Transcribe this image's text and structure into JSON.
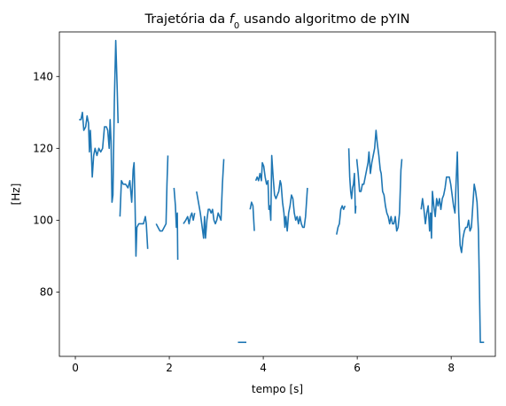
{
  "chart_data": {
    "type": "line",
    "title": "Trajetória da f0 usando algoritmo de pYIN",
    "title_parts": {
      "before": "Trajetória da ",
      "symbol": "f",
      "subscript": "0",
      "after": " usando algoritmo de pYIN"
    },
    "xlabel": "tempo [s]",
    "ylabel": "[Hz]",
    "xlim": [
      -0.34,
      8.94
    ],
    "ylim": [
      62.1,
      152.4
    ],
    "x_ticks": [
      0,
      2,
      4,
      6,
      8
    ],
    "x_tick_labels": [
      "0",
      "2",
      "4",
      "6",
      "8"
    ],
    "y_ticks": [
      80,
      100,
      120,
      140
    ],
    "y_tick_labels": [
      "80",
      "100",
      "120",
      "140"
    ],
    "grid": false,
    "line_color": "#1f77b4",
    "series": [
      {
        "segments": [
          [
            [
              0.08,
              128
            ],
            [
              0.12,
              128
            ],
            [
              0.15,
              130
            ],
            [
              0.18,
              125
            ],
            [
              0.22,
              126
            ],
            [
              0.25,
              129
            ],
            [
              0.28,
              127
            ],
            [
              0.3,
              119
            ],
            [
              0.32,
              125
            ],
            [
              0.34,
              119
            ],
            [
              0.36,
              112
            ],
            [
              0.39,
              118
            ],
            [
              0.42,
              120
            ],
            [
              0.46,
              118
            ],
            [
              0.5,
              120
            ],
            [
              0.54,
              119
            ],
            [
              0.58,
              120
            ],
            [
              0.62,
              126
            ],
            [
              0.66,
              126
            ],
            [
              0.69,
              125
            ],
            [
              0.72,
              120
            ],
            [
              0.74,
              128
            ],
            [
              0.76,
              122
            ],
            [
              0.78,
              105
            ],
            [
              0.8,
              107
            ],
            [
              0.83,
              133
            ],
            [
              0.86,
              150
            ],
            [
              0.89,
              137
            ],
            [
              0.91,
              127
            ]
          ],
          [
            [
              0.95,
              101
            ],
            [
              0.98,
              111
            ],
            [
              1.02,
              110
            ],
            [
              1.07,
              110
            ],
            [
              1.12,
              109
            ],
            [
              1.16,
              111
            ],
            [
              1.2,
              105
            ],
            [
              1.23,
              114
            ],
            [
              1.25,
              116
            ],
            [
              1.27,
              105
            ],
            [
              1.29,
              90
            ],
            [
              1.31,
              98
            ],
            [
              1.35,
              99
            ],
            [
              1.4,
              99
            ],
            [
              1.45,
              99
            ],
            [
              1.49,
              101
            ],
            [
              1.51,
              99
            ],
            [
              1.54,
              92
            ]
          ],
          [
            [
              1.72,
              99
            ],
            [
              1.76,
              98
            ],
            [
              1.8,
              97
            ],
            [
              1.85,
              97
            ],
            [
              1.89,
              98
            ],
            [
              1.93,
              99
            ],
            [
              1.95,
              110
            ],
            [
              1.97,
              118
            ]
          ],
          [
            [
              2.1,
              109
            ],
            [
              2.13,
              104
            ],
            [
              2.15,
              98
            ],
            [
              2.17,
              102
            ],
            [
              2.18,
              89
            ]
          ],
          [
            [
              2.3,
              99
            ],
            [
              2.35,
              100
            ],
            [
              2.39,
              101
            ],
            [
              2.42,
              99
            ],
            [
              2.45,
              101
            ],
            [
              2.48,
              102
            ],
            [
              2.51,
              100
            ],
            [
              2.54,
              102
            ]
          ],
          [
            [
              2.58,
              108
            ],
            [
              2.62,
              105
            ],
            [
              2.66,
              102
            ],
            [
              2.7,
              98
            ],
            [
              2.73,
              95
            ],
            [
              2.75,
              101
            ],
            [
              2.77,
              95
            ],
            [
              2.8,
              100
            ],
            [
              2.83,
              103
            ],
            [
              2.86,
              103
            ],
            [
              2.89,
              102
            ],
            [
              2.92,
              103
            ],
            [
              2.95,
              100
            ],
            [
              2.98,
              99
            ],
            [
              3.01,
              100
            ],
            [
              3.04,
              102
            ],
            [
              3.07,
              101
            ],
            [
              3.1,
              100
            ],
            [
              3.13,
              110
            ],
            [
              3.16,
              117
            ]
          ],
          [
            [
              3.46,
              66
            ],
            [
              3.64,
              66
            ]
          ],
          [
            [
              3.72,
              103
            ],
            [
              3.75,
              105
            ],
            [
              3.78,
              104
            ],
            [
              3.81,
              97
            ]
          ],
          [
            [
              3.84,
              111
            ],
            [
              3.87,
              112
            ],
            [
              3.9,
              111
            ],
            [
              3.93,
              113
            ],
            [
              3.96,
              111
            ],
            [
              3.98,
              116
            ],
            [
              4.01,
              115
            ],
            [
              4.04,
              112
            ],
            [
              4.07,
              110
            ],
            [
              4.1,
              111
            ],
            [
              4.12,
              103
            ],
            [
              4.14,
              104
            ],
            [
              4.16,
              100
            ],
            [
              4.18,
              118
            ],
            [
              4.21,
              112
            ],
            [
              4.24,
              107
            ],
            [
              4.27,
              106
            ],
            [
              4.3,
              107
            ],
            [
              4.33,
              108
            ],
            [
              4.36,
              111
            ],
            [
              4.38,
              110
            ],
            [
              4.41,
              105
            ],
            [
              4.44,
              102
            ],
            [
              4.46,
              98
            ],
            [
              4.48,
              101
            ],
            [
              4.51,
              97
            ],
            [
              4.54,
              102
            ],
            [
              4.57,
              104
            ],
            [
              4.6,
              107
            ],
            [
              4.63,
              106
            ],
            [
              4.66,
              102
            ],
            [
              4.69,
              100
            ],
            [
              4.72,
              101
            ],
            [
              4.75,
              99
            ],
            [
              4.78,
              101
            ],
            [
              4.81,
              99
            ],
            [
              4.84,
              98
            ],
            [
              4.87,
              98
            ],
            [
              4.9,
              101
            ],
            [
              4.92,
              105
            ],
            [
              4.94,
              109
            ]
          ],
          [
            [
              5.56,
              96
            ],
            [
              5.59,
              98
            ],
            [
              5.62,
              99
            ],
            [
              5.65,
              103
            ],
            [
              5.68,
              104
            ],
            [
              5.71,
              103
            ],
            [
              5.74,
              104
            ]
          ],
          [
            [
              5.82,
              120
            ],
            [
              5.84,
              112
            ],
            [
              5.86,
              108
            ],
            [
              5.88,
              106
            ],
            [
              5.9,
              109
            ],
            [
              5.92,
              110
            ],
            [
              5.94,
              113
            ],
            [
              5.96,
              102
            ],
            [
              5.97,
              104
            ]
          ],
          [
            [
              5.99,
              117
            ],
            [
              6.02,
              113
            ],
            [
              6.05,
              108
            ],
            [
              6.08,
              108
            ],
            [
              6.11,
              110
            ],
            [
              6.14,
              110
            ],
            [
              6.17,
              112
            ],
            [
              6.2,
              114
            ],
            [
              6.23,
              116
            ],
            [
              6.25,
              119
            ],
            [
              6.28,
              113
            ],
            [
              6.31,
              116
            ],
            [
              6.34,
              118
            ],
            [
              6.37,
              120
            ],
            [
              6.4,
              125
            ],
            [
              6.43,
              121
            ],
            [
              6.46,
              118
            ],
            [
              6.49,
              114
            ],
            [
              6.51,
              113
            ],
            [
              6.54,
              108
            ],
            [
              6.57,
              107
            ],
            [
              6.6,
              104
            ],
            [
              6.63,
              102
            ],
            [
              6.66,
              101
            ],
            [
              6.69,
              99
            ],
            [
              6.72,
              101
            ],
            [
              6.75,
              99
            ],
            [
              6.78,
              99
            ],
            [
              6.81,
              101
            ],
            [
              6.84,
              97
            ],
            [
              6.87,
              98
            ],
            [
              6.9,
              102
            ],
            [
              6.93,
              114
            ],
            [
              6.95,
              117
            ]
          ],
          [
            [
              7.36,
              103
            ],
            [
              7.39,
              106
            ],
            [
              7.42,
              103
            ],
            [
              7.45,
              99
            ],
            [
              7.48,
              102
            ],
            [
              7.51,
              104
            ],
            [
              7.54,
              97
            ],
            [
              7.56,
              102
            ],
            [
              7.58,
              95
            ],
            [
              7.6,
              108
            ],
            [
              7.63,
              104
            ],
            [
              7.66,
              101
            ],
            [
              7.69,
              106
            ],
            [
              7.72,
              104
            ],
            [
              7.75,
              106
            ],
            [
              7.78,
              103
            ],
            [
              7.81,
              106
            ],
            [
              7.84,
              107
            ],
            [
              7.87,
              109
            ],
            [
              7.9,
              112
            ],
            [
              7.93,
              112
            ],
            [
              7.96,
              112
            ],
            [
              7.99,
              110
            ],
            [
              8.02,
              107
            ],
            [
              8.05,
              104
            ],
            [
              8.08,
              102
            ],
            [
              8.1,
              109
            ],
            [
              8.13,
              119
            ],
            [
              8.16,
              102
            ],
            [
              8.19,
              93
            ],
            [
              8.22,
              91
            ],
            [
              8.25,
              95
            ],
            [
              8.28,
              97
            ],
            [
              8.31,
              98
            ],
            [
              8.34,
              98
            ],
            [
              8.37,
              100
            ],
            [
              8.4,
              97
            ],
            [
              8.43,
              98
            ],
            [
              8.46,
              104
            ],
            [
              8.49,
              110
            ],
            [
              8.52,
              108
            ],
            [
              8.55,
              105
            ],
            [
              8.58,
              97
            ],
            [
              8.6,
              82
            ],
            [
              8.62,
              66
            ],
            [
              8.7,
              66
            ]
          ]
        ]
      }
    ]
  }
}
